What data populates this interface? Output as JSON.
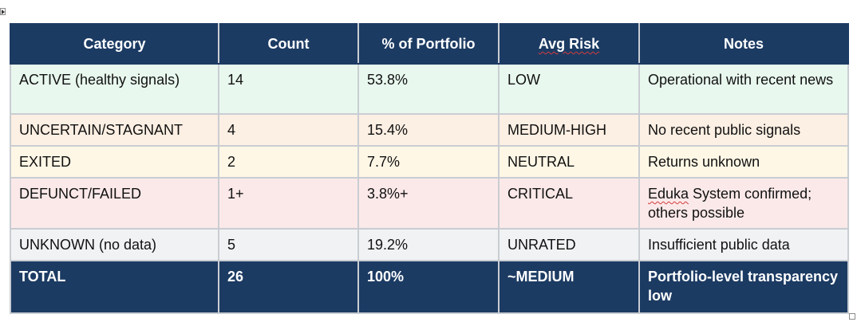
{
  "table": {
    "headers": {
      "category": "Category",
      "count": "Count",
      "percent": "% of Portfolio",
      "risk": "Avg Risk",
      "notes": "Notes"
    },
    "rows": [
      {
        "category": "ACTIVE (healthy signals)",
        "count": "14",
        "percent": "53.8%",
        "risk": "LOW",
        "notes": "Operational with recent news"
      },
      {
        "category": "UNCERTAIN/STAGNANT",
        "count": "4",
        "percent": "15.4%",
        "risk": "MEDIUM-HIGH",
        "notes": "No recent public signals"
      },
      {
        "category": "EXITED",
        "count": "2",
        "percent": "7.7%",
        "risk": "NEUTRAL",
        "notes": "Returns unknown"
      },
      {
        "category": "DEFUNCT/FAILED",
        "count": "1+",
        "percent": "3.8%+",
        "risk": "CRITICAL",
        "notes_flagged": "Eduka",
        "notes": " System confirmed; others possible"
      },
      {
        "category": "UNKNOWN (no data)",
        "count": "5",
        "percent": "19.2%",
        "risk": "UNRATED",
        "notes": "Insufficient public data"
      }
    ],
    "total": {
      "category": "TOTAL",
      "count": "26",
      "percent": "100%",
      "risk": "~MEDIUM",
      "notes": "Portfolio-level transparency low"
    }
  },
  "colors": {
    "header_bg": "#1c3b63",
    "active_bg": "#e8f8ee",
    "uncertain_bg": "#fcefe3",
    "exited_bg": "#fff7e6",
    "defunct_bg": "#fbe9e9",
    "unknown_bg": "#f1f2f4"
  }
}
